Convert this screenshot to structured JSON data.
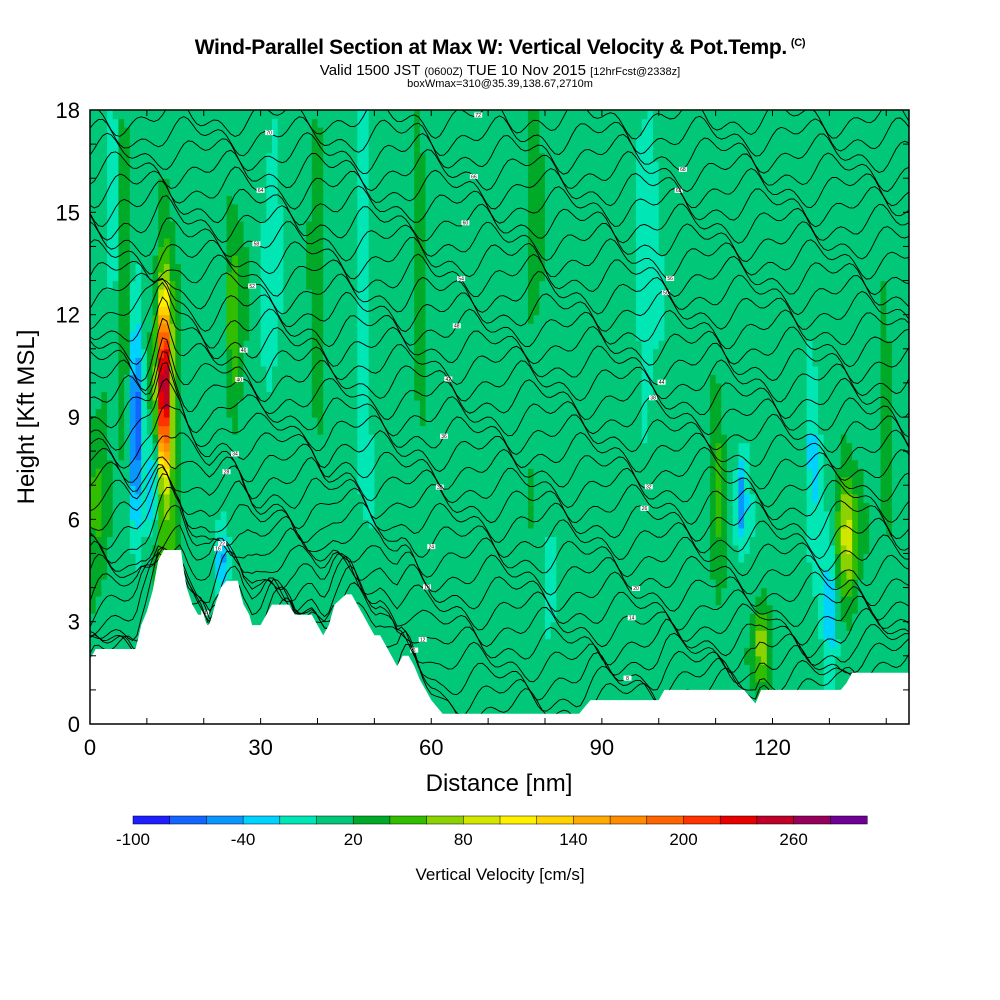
{
  "title": {
    "main": "Wind-Parallel Section at Max W: Vertical Velocity & Pot.Temp.",
    "mark": "(C)",
    "valid_prefix": "Valid 1500 JST",
    "valid_utc": "(0600Z)",
    "valid_date": "TUE 10 Nov 2015",
    "forecast": "[12hrFcst@2338z]",
    "box_info": "boxWmax=310@35.39,138.67,2710m"
  },
  "colors": {
    "palette": [
      "#1e1eff",
      "#1464ff",
      "#0a96ff",
      "#00d2ff",
      "#00e6b4",
      "#00c878",
      "#00aa28",
      "#32be00",
      "#8cd200",
      "#d2e600",
      "#fff000",
      "#ffd200",
      "#ffaa00",
      "#ff8c00",
      "#ff6400",
      "#ff3200",
      "#e60000",
      "#be0028",
      "#96005a",
      "#6e0096"
    ],
    "terrain": "#ffffff",
    "contour": "#000000"
  },
  "chart_data": {
    "type": "heatmap",
    "xlabel": "Distance [nm]",
    "ylabel": "Height [Kft MSL]",
    "xlim": [
      0,
      144
    ],
    "ylim": [
      0,
      18
    ],
    "x_ticks": [
      0,
      30,
      60,
      90,
      120
    ],
    "y_ticks": [
      0,
      3,
      6,
      9,
      12,
      15,
      18
    ],
    "colorbar": {
      "title": "Vertical Velocity [cm/s]",
      "min": -100,
      "step": 20,
      "levels": 20,
      "tick_labels": [
        "-100",
        "-40",
        "20",
        "80",
        "140",
        "200",
        "260"
      ],
      "tick_values": [
        -100,
        -40,
        20,
        80,
        140,
        200,
        260
      ]
    },
    "background_velocity_cm_s": 10,
    "updrafts": [
      {
        "x": 13.0,
        "y_center": 10.0,
        "y_halfwidth": 2.3,
        "x_halfwidth": 1.0,
        "peak": 240
      },
      {
        "x": 13.2,
        "y_center": 8.2,
        "y_halfwidth": 5.5,
        "x_halfwidth": 2.3,
        "peak": 60
      },
      {
        "x": 1.5,
        "y_center": 6.5,
        "y_halfwidth": 2.5,
        "x_halfwidth": 1.8,
        "peak": 45
      },
      {
        "x": 25.5,
        "y_center": 12.0,
        "y_halfwidth": 2.8,
        "x_halfwidth": 1.6,
        "peak": 40
      },
      {
        "x": 133.0,
        "y_center": 5.5,
        "y_halfwidth": 1.8,
        "x_halfwidth": 2.2,
        "peak": 70
      },
      {
        "x": 118.0,
        "y_center": 2.3,
        "y_halfwidth": 1.2,
        "x_halfwidth": 1.6,
        "peak": 60
      },
      {
        "x": 6.0,
        "y_center": 12.0,
        "y_halfwidth": 6.0,
        "x_halfwidth": 1.2,
        "peak": 30
      },
      {
        "x": 40.0,
        "y_center": 14.0,
        "y_halfwidth": 5.0,
        "x_halfwidth": 1.2,
        "peak": 25
      },
      {
        "x": 58.0,
        "y_center": 14.0,
        "y_halfwidth": 5.0,
        "x_halfwidth": 1.2,
        "peak": 25
      },
      {
        "x": 78.0,
        "y_center": 14.0,
        "y_halfwidth": 4.0,
        "x_halfwidth": 1.5,
        "peak": 25
      },
      {
        "x": 110.0,
        "y_center": 7.0,
        "y_halfwidth": 3.0,
        "x_halfwidth": 1.5,
        "peak": 30
      },
      {
        "x": 140.0,
        "y_center": 8.0,
        "y_halfwidth": 3.0,
        "x_halfwidth": 1.5,
        "peak": 25
      }
    ],
    "downdrafts": [
      {
        "x": 8.0,
        "y_center": 8.5,
        "y_halfwidth": 3.0,
        "x_halfwidth": 1.3,
        "peak": -90
      },
      {
        "x": 11.0,
        "y_center": 7.0,
        "y_halfwidth": 1.5,
        "x_halfwidth": 1.2,
        "peak": -80
      },
      {
        "x": 114.5,
        "y_center": 6.5,
        "y_halfwidth": 1.3,
        "x_halfwidth": 1.0,
        "peak": -70
      },
      {
        "x": 130.0,
        "y_center": 3.5,
        "y_halfwidth": 2.5,
        "x_halfwidth": 1.2,
        "peak": -50
      },
      {
        "x": 23.0,
        "y_center": 4.8,
        "y_halfwidth": 1.0,
        "x_halfwidth": 1.0,
        "peak": -60
      },
      {
        "x": 4.0,
        "y_center": 15.0,
        "y_halfwidth": 3.0,
        "x_halfwidth": 1.2,
        "peak": -30
      },
      {
        "x": 32.0,
        "y_center": 14.0,
        "y_halfwidth": 4.0,
        "x_halfwidth": 1.2,
        "peak": -30
      },
      {
        "x": 48.0,
        "y_center": 12.0,
        "y_halfwidth": 5.0,
        "x_halfwidth": 1.2,
        "peak": -30
      },
      {
        "x": 81.0,
        "y_center": 4.0,
        "y_halfwidth": 1.5,
        "x_halfwidth": 1.0,
        "peak": -30
      },
      {
        "x": 98.0,
        "y_center": 14.0,
        "y_halfwidth": 5.0,
        "x_halfwidth": 1.5,
        "peak": -30
      },
      {
        "x": 127.0,
        "y_center": 8.0,
        "y_halfwidth": 3.0,
        "x_halfwidth": 1.5,
        "peak": -30
      }
    ],
    "terrain_kft": [
      [
        0,
        1.9
      ],
      [
        1,
        2.2
      ],
      [
        8,
        2.2
      ],
      [
        8.6,
        2.6
      ],
      [
        9,
        2.9
      ],
      [
        10,
        3.3
      ],
      [
        11,
        3.9
      ],
      [
        12,
        4.8
      ],
      [
        13,
        5.1
      ],
      [
        16,
        5.1
      ],
      [
        16.5,
        4.5
      ],
      [
        17,
        4.0
      ],
      [
        18,
        3.5
      ],
      [
        19,
        3.2
      ],
      [
        20,
        3.2
      ],
      [
        20.5,
        2.9
      ],
      [
        21,
        2.9
      ],
      [
        21.5,
        3.2
      ],
      [
        22,
        3.5
      ],
      [
        23,
        4.0
      ],
      [
        24,
        4.2
      ],
      [
        26,
        4.2
      ],
      [
        26.5,
        3.8
      ],
      [
        27,
        3.5
      ],
      [
        28,
        3.2
      ],
      [
        28.5,
        2.9
      ],
      [
        30,
        2.9
      ],
      [
        31,
        3.2
      ],
      [
        32,
        3.5
      ],
      [
        35,
        3.5
      ],
      [
        36,
        3.2
      ],
      [
        39,
        3.2
      ],
      [
        40,
        2.9
      ],
      [
        41,
        2.6
      ],
      [
        42,
        2.9
      ],
      [
        43,
        3.5
      ],
      [
        45,
        3.8
      ],
      [
        46,
        3.8
      ],
      [
        47,
        3.5
      ],
      [
        48,
        3.2
      ],
      [
        49,
        2.9
      ],
      [
        50,
        2.6
      ],
      [
        51,
        2.6
      ],
      [
        52,
        2.3
      ],
      [
        53,
        2.0
      ],
      [
        54,
        1.7
      ],
      [
        55,
        2.0
      ],
      [
        56,
        2.0
      ],
      [
        57,
        1.7
      ],
      [
        58,
        1.3
      ],
      [
        59,
        1.0
      ],
      [
        60,
        0.7
      ],
      [
        61,
        0.5
      ],
      [
        62,
        0.3
      ],
      [
        63,
        0.3
      ],
      [
        86,
        0.3
      ],
      [
        87,
        0.5
      ],
      [
        88,
        0.7
      ],
      [
        100,
        0.7
      ],
      [
        101,
        1.0
      ],
      [
        115,
        1.0
      ],
      [
        116,
        0.8
      ],
      [
        117,
        0.6
      ],
      [
        118,
        1.0
      ],
      [
        132,
        1.0
      ],
      [
        133,
        1.2
      ],
      [
        134,
        1.5
      ],
      [
        144,
        1.5
      ]
    ],
    "theta_levels_C": [
      4,
      6,
      8,
      10,
      12,
      14,
      16,
      18,
      20,
      22,
      24,
      26,
      28,
      30,
      32,
      34,
      36,
      38,
      40,
      42,
      44,
      46,
      48,
      50,
      52,
      54,
      56,
      58,
      60,
      62,
      64,
      66,
      68,
      70,
      72
    ]
  }
}
